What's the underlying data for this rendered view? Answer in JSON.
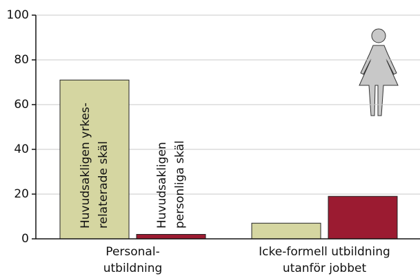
{
  "chart_data": {
    "type": "bar",
    "categories": [
      "Personal-\nutbildning",
      "Icke-formell utbildning\nutanför jobbet"
    ],
    "series": [
      {
        "name": "Huvudsakligen yrkes-\nrelaterade skäl",
        "color": "#d5d6a1",
        "values": [
          71,
          7
        ]
      },
      {
        "name": "Huvudsakligen\npersonliga skäl",
        "color": "#9b1b31",
        "values": [
          2,
          19
        ]
      }
    ],
    "ylim": [
      0,
      100
    ],
    "yticks": [
      0,
      20,
      40,
      60,
      80,
      100
    ],
    "grid": true
  }
}
